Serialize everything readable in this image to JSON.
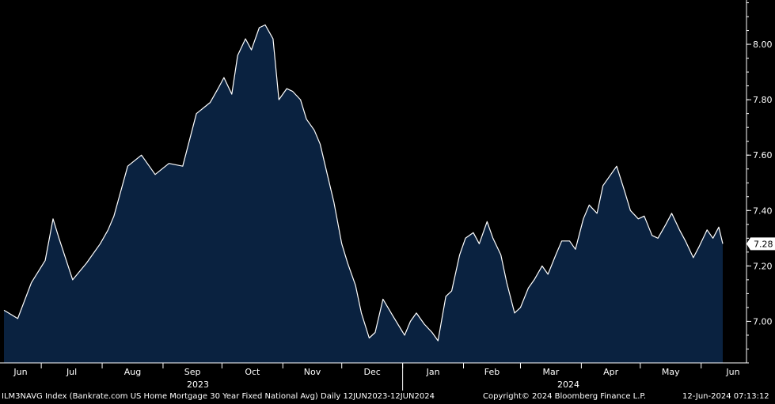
{
  "chart_data": {
    "type": "area",
    "series": [
      {
        "ticker": "ILM3NAVG Index",
        "name": "Bankrate.com US Home Mortgage 30 Year Fixed National Avg",
        "x": [
          "2023-06-12",
          "2023-06-19",
          "2023-06-26",
          "2023-07-03",
          "2023-07-07",
          "2023-07-10",
          "2023-07-17",
          "2023-07-24",
          "2023-07-31",
          "2023-08-04",
          "2023-08-07",
          "2023-08-14",
          "2023-08-21",
          "2023-08-28",
          "2023-09-04",
          "2023-09-11",
          "2023-09-18",
          "2023-09-25",
          "2023-09-29",
          "2023-10-02",
          "2023-10-06",
          "2023-10-09",
          "2023-10-13",
          "2023-10-16",
          "2023-10-20",
          "2023-10-23",
          "2023-10-27",
          "2023-10-30",
          "2023-11-03",
          "2023-11-06",
          "2023-11-10",
          "2023-11-13",
          "2023-11-17",
          "2023-11-20",
          "2023-11-24",
          "2023-11-27",
          "2023-12-01",
          "2023-12-04",
          "2023-12-08",
          "2023-12-11",
          "2023-12-15",
          "2023-12-18",
          "2023-12-22",
          "2023-12-27",
          "2024-01-02",
          "2024-01-05",
          "2024-01-08",
          "2024-01-12",
          "2024-01-16",
          "2024-01-19",
          "2024-01-23",
          "2024-01-26",
          "2024-01-30",
          "2024-02-02",
          "2024-02-06",
          "2024-02-09",
          "2024-02-13",
          "2024-02-16",
          "2024-02-20",
          "2024-02-23",
          "2024-02-27",
          "2024-03-01",
          "2024-03-05",
          "2024-03-08",
          "2024-03-12",
          "2024-03-15",
          "2024-03-19",
          "2024-03-22",
          "2024-03-26",
          "2024-03-29",
          "2024-04-02",
          "2024-04-05",
          "2024-04-09",
          "2024-04-12",
          "2024-04-16",
          "2024-04-19",
          "2024-04-23",
          "2024-04-26",
          "2024-04-30",
          "2024-05-03",
          "2024-05-07",
          "2024-05-10",
          "2024-05-14",
          "2024-05-17",
          "2024-05-21",
          "2024-05-24",
          "2024-05-28",
          "2024-05-31",
          "2024-06-04",
          "2024-06-07",
          "2024-06-10",
          "2024-06-12"
        ],
        "values": [
          7.04,
          7.01,
          7.14,
          7.22,
          7.37,
          7.3,
          7.15,
          7.21,
          7.28,
          7.33,
          7.38,
          7.56,
          7.6,
          7.53,
          7.57,
          7.56,
          7.75,
          7.79,
          7.84,
          7.88,
          7.82,
          7.96,
          8.02,
          7.98,
          8.06,
          8.07,
          8.02,
          7.8,
          7.84,
          7.83,
          7.8,
          7.73,
          7.69,
          7.64,
          7.52,
          7.43,
          7.28,
          7.21,
          7.13,
          7.03,
          6.94,
          6.96,
          7.08,
          7.02,
          6.95,
          7.0,
          7.03,
          6.99,
          6.96,
          6.93,
          7.09,
          7.11,
          7.24,
          7.3,
          7.32,
          7.28,
          7.36,
          7.3,
          7.24,
          7.14,
          7.03,
          7.05,
          7.12,
          7.15,
          7.2,
          7.17,
          7.24,
          7.29,
          7.29,
          7.26,
          7.37,
          7.42,
          7.39,
          7.49,
          7.53,
          7.56,
          7.47,
          7.4,
          7.37,
          7.38,
          7.31,
          7.3,
          7.35,
          7.39,
          7.33,
          7.29,
          7.23,
          7.27,
          7.33,
          7.3,
          7.34,
          7.28
        ],
        "last_value": "7.28"
      }
    ],
    "ylim": [
      6.85,
      8.16
    ],
    "y_ticks": [
      "7.00",
      "7.20",
      "7.40",
      "7.60",
      "7.80",
      "8.00"
    ],
    "x_month_labels": [
      "Jun",
      "Jul",
      "Aug",
      "Sep",
      "Oct",
      "Nov",
      "Dec",
      "Jan",
      "Feb",
      "Mar",
      "Apr",
      "May",
      "Jun"
    ],
    "year_labels": [
      "2023",
      "2024"
    ],
    "grid": false,
    "axis_position": "right",
    "colors": {
      "fill": "#0a2240",
      "line": "#ffffff",
      "background": "#000000",
      "last_value_tag": "#ffffff"
    }
  },
  "footer": {
    "description": "ILM3NAVG Index (Bankrate.com US Home Mortgage 30 Year Fixed National Avg)  Daily 12JUN2023-12JUN2024",
    "copyright": "Copyright© 2024 Bloomberg Finance L.P.",
    "timestamp": "12-Jun-2024 07:13:12"
  }
}
